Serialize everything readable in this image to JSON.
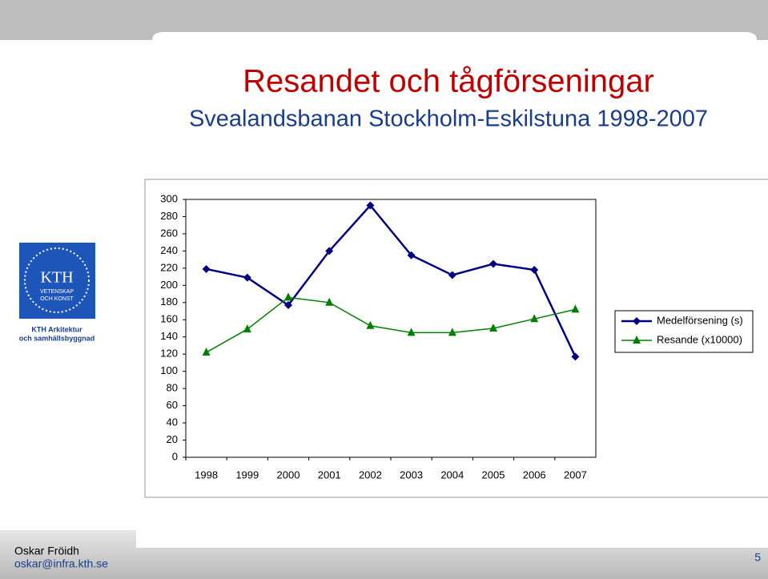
{
  "chart_data": {
    "type": "line",
    "title": "Resandet och tågförseningar",
    "subtitle": "Svealandsbanan Stockholm-Eskilstuna 1998-2007",
    "categories": [
      "1998",
      "1999",
      "2000",
      "2001",
      "2002",
      "2003",
      "2004",
      "2005",
      "2006",
      "2007"
    ],
    "series": [
      {
        "name": "Medelförsening (s)",
        "color": "#000080",
        "marker": "diamond",
        "values": [
          219,
          209,
          177,
          240,
          293,
          235,
          212,
          225,
          218,
          117
        ]
      },
      {
        "name": "Resande (x10000)",
        "color": "#008000",
        "marker": "triangle",
        "values": [
          122,
          149,
          186,
          180,
          153,
          145,
          145,
          150,
          161,
          172
        ]
      }
    ],
    "ylim": [
      0,
      300
    ],
    "yticks": [
      0,
      20,
      40,
      60,
      80,
      100,
      120,
      140,
      160,
      180,
      200,
      220,
      240,
      260,
      280,
      300
    ],
    "grid": false,
    "legend": "right"
  },
  "logo": {
    "name": "KTH",
    "motto_1": "VETENSKAP",
    "motto_2": "OCH KONST",
    "unit_1": "KTH Arkitektur",
    "unit_2": "och samhällsbyggnad"
  },
  "footer": {
    "author": "Oskar Fröidh",
    "email": "oskar@infra.kth.se",
    "page": "5"
  }
}
